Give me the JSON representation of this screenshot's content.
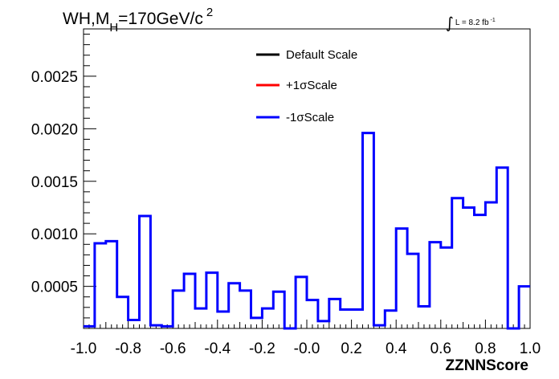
{
  "chart_data": {
    "type": "histogram",
    "title": {
      "main": "WH,M",
      "subscript": "H",
      "rest": "=170GeV/c",
      "superscript": "2"
    },
    "luminosity": {
      "integral_sign": "∫",
      "text": "L = 8.2 fb",
      "superscript": "-1"
    },
    "xlabel": "ZZNNScore",
    "ylabel": "",
    "xlim": [
      -1.0,
      1.0
    ],
    "ylim": [
      0.0001,
      0.00295
    ],
    "x_ticks": [
      "-1.0",
      "-0.8",
      "-0.6",
      "-0.4",
      "-0.2",
      "-0.0",
      "0.2",
      "0.4",
      "0.6",
      "0.8",
      "1.0"
    ],
    "x_tick_values": [
      -1.0,
      -0.8,
      -0.6,
      -0.4,
      -0.2,
      0.0,
      0.2,
      0.4,
      0.6,
      0.8,
      1.0
    ],
    "y_ticks": [
      "0.0005",
      "0.0010",
      "0.0015",
      "0.0020",
      "0.0025"
    ],
    "y_tick_values": [
      0.0005,
      0.001,
      0.0015,
      0.002,
      0.0025
    ],
    "bin_width": 0.05,
    "bin_edges_start": -1.0,
    "legend": [
      {
        "label": "Default Scale",
        "color": "#000000"
      },
      {
        "label": "+1σScale",
        "color": "#ff0000"
      },
      {
        "label": "-1σScale",
        "color": "#0000ff"
      }
    ],
    "series": [
      {
        "name": "-1σScale",
        "color": "#0000ff",
        "values": [
          0.00012,
          0.00091,
          0.00093,
          0.0004,
          0.00018,
          0.00117,
          0.00013,
          0.00012,
          0.00046,
          0.00062,
          0.00029,
          0.00063,
          0.00026,
          0.00053,
          0.00046,
          0.0002,
          0.00029,
          0.00045,
          0.0001,
          0.00059,
          0.00037,
          0.00017,
          0.00038,
          0.00028,
          0.00028,
          0.00196,
          0.00013,
          0.00027,
          0.00105,
          0.00081,
          0.00031,
          0.00092,
          0.00087,
          0.00134,
          0.00125,
          0.00118,
          0.0013,
          0.00163,
          0.0001,
          0.0005
        ]
      }
    ]
  }
}
